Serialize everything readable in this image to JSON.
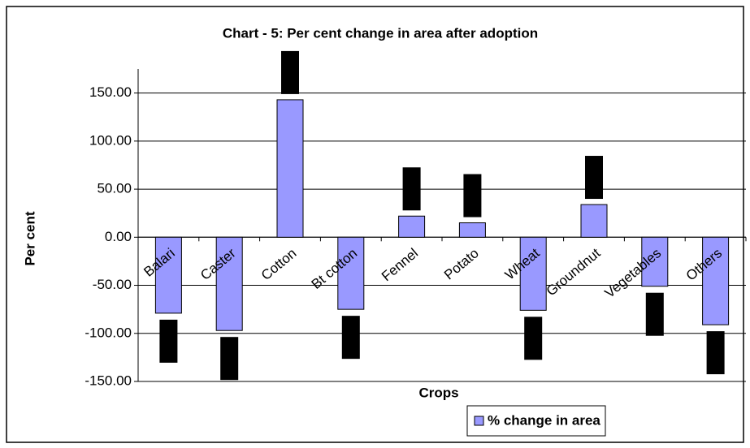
{
  "chart_data": {
    "type": "bar",
    "title": "Chart - 5: Per cent change in area after adoption",
    "x_label": "Crops",
    "y_label": "Per cent",
    "categories": [
      "Balari",
      "Caster",
      "Cotton",
      "Bt cotton",
      "Fennel",
      "Potato",
      "Wheat",
      "Groundnut",
      "Vegetables",
      "Others"
    ],
    "series": [
      {
        "name": "% change in area",
        "color": "#9999ff",
        "values": [
          -79,
          -97,
          143,
          -75,
          22,
          15,
          -76,
          34,
          -51,
          -91
        ]
      }
    ],
    "ylim": [
      -150,
      175
    ],
    "yticks": [
      {
        "value": -150,
        "label": "-150.00"
      },
      {
        "value": -100,
        "label": "-100.00"
      },
      {
        "value": -50,
        "label": "-50.00"
      },
      {
        "value": 0,
        "label": "0.00"
      },
      {
        "value": 50,
        "label": "50.00"
      },
      {
        "value": 100,
        "label": "100.00"
      },
      {
        "value": 150,
        "label": "150.00"
      }
    ],
    "grid": true
  }
}
